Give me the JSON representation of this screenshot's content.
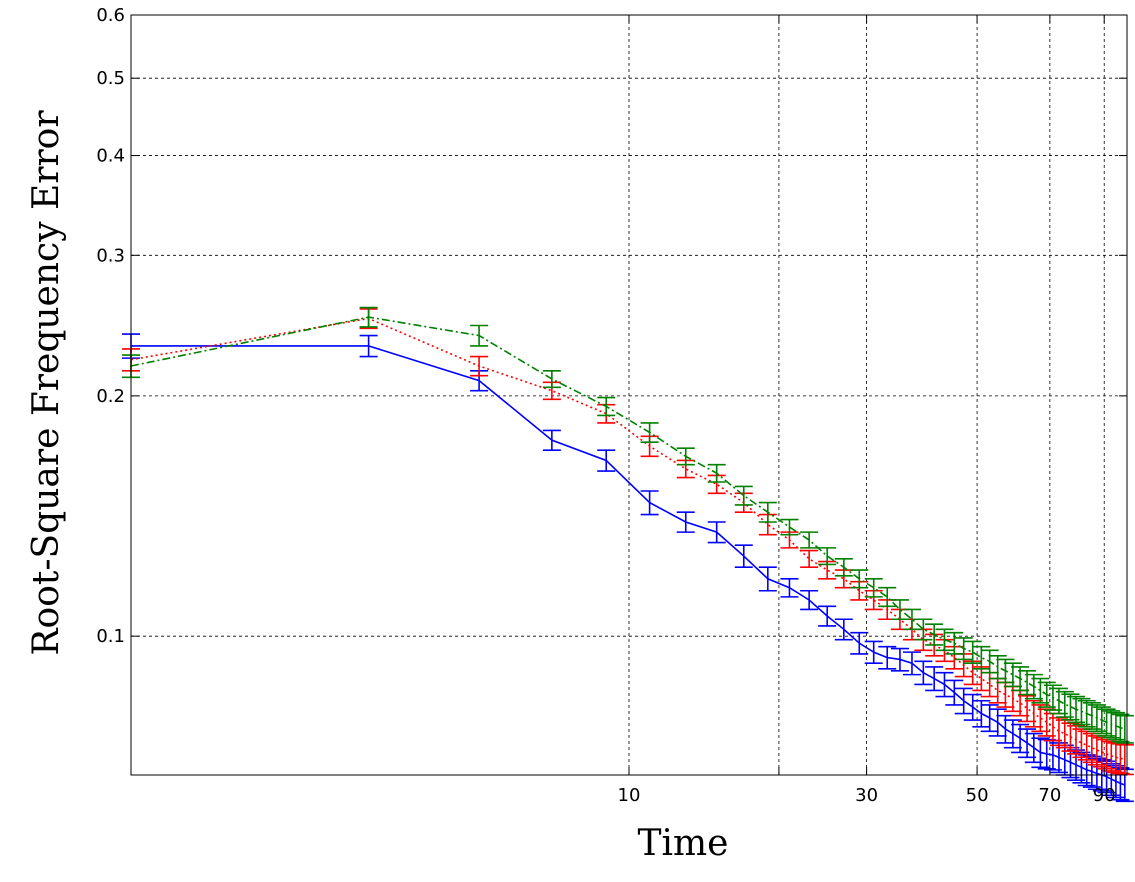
{
  "chart_data": {
    "type": "line",
    "title": "",
    "xlabel": "Time",
    "ylabel": "Root-Square Frequency Error",
    "x_scale": "log",
    "y_scale": "log",
    "xlim": [
      1,
      100
    ],
    "ylim": [
      0.067,
      0.6
    ],
    "grid": true,
    "x_tick_labels": [
      "10",
      "30",
      "50",
      "70",
      "90"
    ],
    "x_gridlines": [
      10,
      20,
      30,
      50,
      70,
      90
    ],
    "y_tick_labels": [
      "0.1",
      "0.2",
      "0.3",
      "0.4",
      "0.5",
      "0.6"
    ],
    "y_ticks": [
      0.1,
      0.2,
      0.3,
      0.4,
      0.5,
      0.6
    ],
    "series": [
      {
        "color": "#0000ff",
        "dash": "solid",
        "x": [
          1,
          3,
          5,
          7,
          9,
          11,
          13,
          15,
          17,
          19,
          21,
          23,
          25,
          27,
          29,
          31,
          33,
          35,
          37,
          39,
          41,
          43,
          45,
          47,
          49,
          51,
          53,
          55,
          57,
          59,
          61,
          63,
          65,
          67,
          69,
          71,
          73,
          75,
          77,
          79,
          81,
          83,
          85,
          87,
          89,
          91,
          93,
          95,
          97,
          99
        ],
        "y": [
          0.231,
          0.231,
          0.209,
          0.176,
          0.166,
          0.147,
          0.139,
          0.135,
          0.126,
          0.118,
          0.115,
          0.111,
          0.106,
          0.102,
          0.098,
          0.0955,
          0.094,
          0.0935,
          0.0925,
          0.09,
          0.0885,
          0.087,
          0.085,
          0.083,
          0.0815,
          0.08,
          0.079,
          0.078,
          0.0765,
          0.0755,
          0.0745,
          0.0735,
          0.0725,
          0.0715,
          0.0712,
          0.071,
          0.0705,
          0.07,
          0.0695,
          0.069,
          0.0685,
          0.068,
          0.0677,
          0.0673,
          0.067,
          0.0667,
          0.0662,
          0.0658,
          0.0654,
          0.0651
        ],
        "err": [
          0.008,
          0.007,
          0.006,
          0.005,
          0.005,
          0.005,
          0.004,
          0.004,
          0.004,
          0.004,
          0.003,
          0.003,
          0.003,
          0.003,
          0.003,
          0.003,
          0.003,
          0.003,
          0.003,
          0.003,
          0.003,
          0.003,
          0.003,
          0.003,
          0.003,
          0.003,
          0.003,
          0.003,
          0.003,
          0.003,
          0.003,
          0.003,
          0.003,
          0.003,
          0.003,
          0.003,
          0.003,
          0.003,
          0.003,
          0.003,
          0.003,
          0.003,
          0.003,
          0.003,
          0.003,
          0.003,
          0.003,
          0.003,
          0.003,
          0.003
        ]
      },
      {
        "color": "#ff0000",
        "dash": "dotted",
        "x": [
          1,
          3,
          5,
          7,
          9,
          11,
          13,
          15,
          17,
          19,
          21,
          23,
          25,
          27,
          29,
          31,
          33,
          35,
          37,
          39,
          41,
          43,
          45,
          47,
          49,
          51,
          53,
          55,
          57,
          59,
          61,
          63,
          65,
          67,
          69,
          71,
          73,
          75,
          77,
          79,
          81,
          83,
          85,
          87,
          89,
          91,
          93,
          95,
          97,
          99
        ],
        "y": [
          0.222,
          0.25,
          0.218,
          0.203,
          0.19,
          0.173,
          0.162,
          0.155,
          0.147,
          0.138,
          0.132,
          0.125,
          0.121,
          0.118,
          0.114,
          0.111,
          0.108,
          0.105,
          0.102,
          0.099,
          0.0975,
          0.096,
          0.094,
          0.092,
          0.09,
          0.0885,
          0.087,
          0.0855,
          0.0845,
          0.0835,
          0.0825,
          0.0812,
          0.08,
          0.079,
          0.078,
          0.077,
          0.076,
          0.0755,
          0.0748,
          0.0742,
          0.0735,
          0.073,
          0.0725,
          0.072,
          0.0716,
          0.0712,
          0.0708,
          0.0705,
          0.0703,
          0.0701
        ],
        "err": [
          0.007,
          0.007,
          0.006,
          0.005,
          0.005,
          0.005,
          0.004,
          0.004,
          0.004,
          0.004,
          0.003,
          0.003,
          0.003,
          0.003,
          0.003,
          0.003,
          0.003,
          0.003,
          0.003,
          0.003,
          0.003,
          0.003,
          0.003,
          0.003,
          0.003,
          0.003,
          0.003,
          0.003,
          0.003,
          0.003,
          0.003,
          0.003,
          0.003,
          0.003,
          0.003,
          0.003,
          0.003,
          0.003,
          0.003,
          0.003,
          0.003,
          0.003,
          0.003,
          0.003,
          0.003,
          0.003,
          0.003,
          0.003,
          0.003,
          0.003
        ]
      },
      {
        "color": "#008000",
        "dash": "dashdot",
        "x": [
          1,
          3,
          5,
          7,
          9,
          11,
          13,
          15,
          17,
          19,
          21,
          23,
          25,
          27,
          29,
          31,
          33,
          35,
          37,
          39,
          41,
          43,
          45,
          47,
          49,
          51,
          53,
          55,
          57,
          59,
          61,
          63,
          65,
          67,
          69,
          71,
          73,
          75,
          77,
          79,
          81,
          83,
          85,
          87,
          89,
          91,
          93,
          95,
          97,
          99
        ],
        "y": [
          0.218,
          0.251,
          0.238,
          0.21,
          0.194,
          0.18,
          0.168,
          0.16,
          0.15,
          0.143,
          0.137,
          0.132,
          0.126,
          0.122,
          0.118,
          0.115,
          0.112,
          0.108,
          0.105,
          0.102,
          0.1005,
          0.099,
          0.098,
          0.0965,
          0.0955,
          0.094,
          0.093,
          0.0915,
          0.0905,
          0.0895,
          0.0885,
          0.0875,
          0.0865,
          0.0855,
          0.0845,
          0.0838,
          0.083,
          0.0822,
          0.0816,
          0.081,
          0.0805,
          0.08,
          0.0795,
          0.079,
          0.0785,
          0.078,
          0.0776,
          0.0772,
          0.0768,
          0.0765
        ],
        "err": [
          0.007,
          0.007,
          0.007,
          0.005,
          0.005,
          0.005,
          0.004,
          0.004,
          0.004,
          0.004,
          0.003,
          0.003,
          0.003,
          0.003,
          0.003,
          0.003,
          0.003,
          0.003,
          0.003,
          0.003,
          0.003,
          0.003,
          0.003,
          0.003,
          0.003,
          0.003,
          0.003,
          0.003,
          0.003,
          0.003,
          0.003,
          0.003,
          0.003,
          0.003,
          0.003,
          0.003,
          0.003,
          0.003,
          0.003,
          0.003,
          0.003,
          0.003,
          0.003,
          0.003,
          0.003,
          0.003,
          0.003,
          0.003,
          0.003,
          0.003
        ]
      }
    ]
  }
}
